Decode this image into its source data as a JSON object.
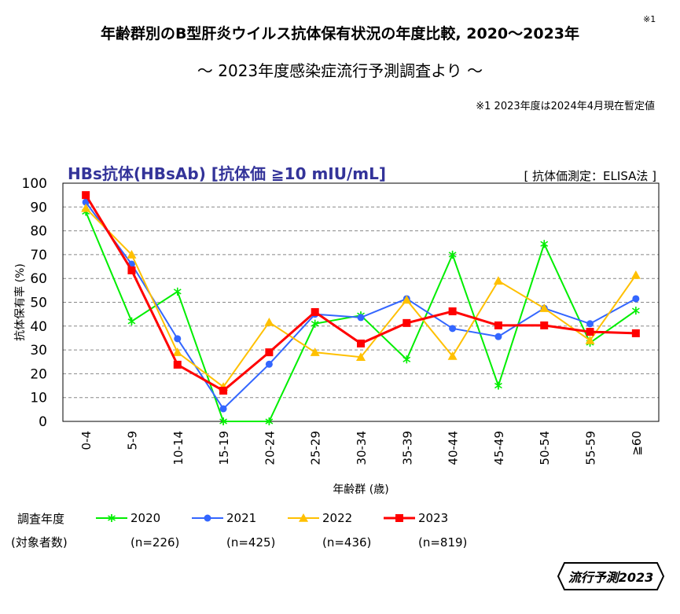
{
  "title": "年齢群別のB型肝炎ウイルス抗体保有状況の年度比較, 2020～2023年",
  "title_note": "※1",
  "subtitle": "～ 2023年度感染症流行予測調査より ～",
  "footnote": "※1  2023年度は2024年4月現在暫定値",
  "logo_text": "流行予測2023",
  "chart_data": {
    "type": "line",
    "title": "HBs抗体(HBsAb) [抗体価 ≧10 mIU/mL]",
    "annotation": "[ 抗体価測定：ELISA法 ]",
    "xlabel": "年齢群 (歳)",
    "ylabel": "抗体保有率 (%)",
    "ylim": [
      0,
      100
    ],
    "yticks": [
      0,
      10,
      20,
      30,
      40,
      50,
      60,
      70,
      80,
      90,
      100
    ],
    "grid": true,
    "legend_position": "bottom",
    "legend_title": "調査年度",
    "legend_subtitle": "(対象者数)",
    "categories": [
      "0-4",
      "5-9",
      "10-14",
      "15-19",
      "20-24",
      "25-29",
      "30-34",
      "35-39",
      "40-44",
      "45-49",
      "50-54",
      "55-59",
      "≧60"
    ],
    "series": [
      {
        "name": "2020",
        "n": "(n=226)",
        "color": "#00ee00",
        "marker": "star",
        "values": [
          88,
          42,
          54.5,
          0,
          0,
          41,
          44.5,
          26,
          70,
          15,
          74.5,
          33,
          46.5
        ]
      },
      {
        "name": "2021",
        "n": "(n=425)",
        "color": "#3366ff",
        "marker": "circle",
        "values": [
          92,
          66,
          34.7,
          5.3,
          24,
          45,
          43.6,
          51.5,
          39,
          35.6,
          47.5,
          41,
          51.5
        ]
      },
      {
        "name": "2022",
        "n": "(n=436)",
        "color": "#ffc000",
        "marker": "triangle",
        "values": [
          89.5,
          70,
          29,
          14.5,
          41.6,
          29,
          27,
          51,
          27.4,
          59,
          47.5,
          34,
          61.4
        ]
      },
      {
        "name": "2023",
        "n": "(n=819)",
        "color": "#ff0000",
        "marker": "square",
        "values": [
          95,
          63.4,
          23.8,
          12.9,
          29,
          45.9,
          32.7,
          41.3,
          46.2,
          40.3,
          40.3,
          37.6,
          37
        ]
      }
    ]
  }
}
